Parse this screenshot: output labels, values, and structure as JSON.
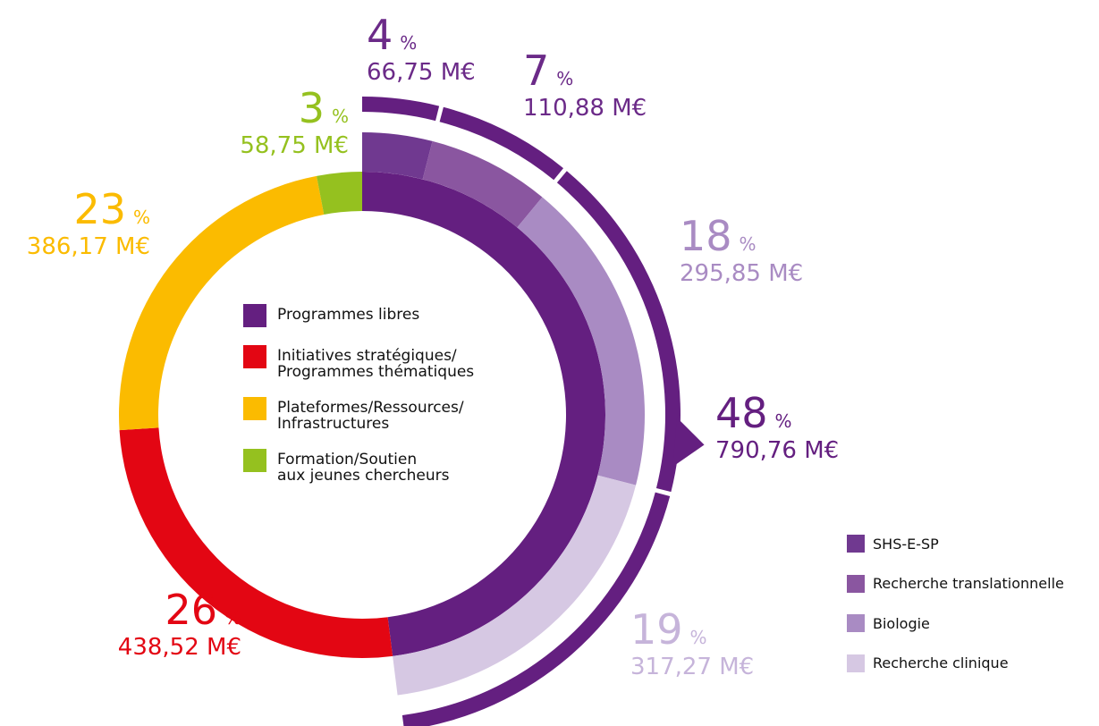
{
  "chart_data": {
    "type": "nested-donut",
    "unit": "%",
    "series": [
      {
        "name": "Programmes libres",
        "color": "#641f80"
      },
      {
        "name": "Initiatives stratégiques/\nProgrammes thématiques",
        "color": "#e30613"
      },
      {
        "name": "Plateformes/Ressources/\nInfrastructures",
        "color": "#fbbb00"
      },
      {
        "name": "Formation/Soutien\naux jeunes chercheurs",
        "color": "#95c11f"
      }
    ],
    "values": [
      48,
      26,
      23,
      3
    ],
    "amounts": [
      790.76,
      438.52,
      386.17,
      58.75
    ],
    "amount_labels": [
      "790,76 M€",
      "438,52 M€",
      "386,17 M€",
      "58,75 M€"
    ],
    "sub": {
      "of": 0,
      "series": [
        {
          "name": "SHS-E-SP",
          "color": "#703990",
          "label_color": "#6b2a88"
        },
        {
          "name": "Recherche translationnelle",
          "color": "#8a56a0",
          "label_color": "#6b2a88"
        },
        {
          "name": "Biologie",
          "color": "#a98bc3",
          "label_color": "#a98bc3"
        },
        {
          "name": "Recherche clinique",
          "color": "#d6c8e3",
          "label_color": "#c6b4da"
        }
      ],
      "values": [
        4,
        7,
        18,
        19
      ],
      "amounts": [
        66.75,
        110.88,
        295.85,
        317.27
      ],
      "amount_labels": [
        "66,75 M€",
        "110,88 M€",
        "295,85 M€",
        "317,27 M€"
      ]
    }
  }
}
